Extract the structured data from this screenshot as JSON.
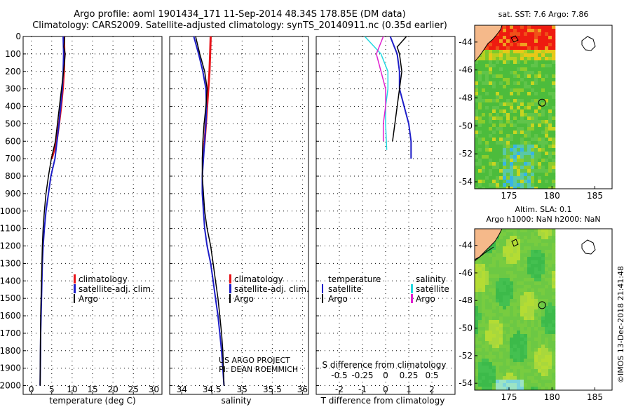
{
  "header": {
    "title_line1": "Argo profile: aoml 1901434_171 11-Sep-2014 48.34S 178.85E (DM data)",
    "title_line2": "Climatology: CARS2009. Satellite-adjusted climatology: synTS_20140911.nc (0.35d earlier)"
  },
  "colors": {
    "climatology": "#e8141a",
    "satellite": "#1e1ec8",
    "argo": "#000000",
    "salinity_diff": "#22d8e0",
    "argo_salinity_diff": "#e020d0"
  },
  "chart_data": [
    {
      "type": "line",
      "id": "temperature",
      "xlabel": "temperature (deg C)",
      "ylabel": "",
      "xlim": [
        -2,
        32
      ],
      "ylim": [
        2050,
        0
      ],
      "xticks": [
        "0",
        "5",
        "10",
        "15",
        "20",
        "25",
        "30"
      ],
      "xtick_values": [
        0,
        5,
        10,
        15,
        20,
        25,
        30
      ],
      "yticks": [
        "0",
        "100",
        "200",
        "300",
        "400",
        "500",
        "600",
        "700",
        "800",
        "900",
        "1000",
        "1100",
        "1200",
        "1300",
        "1400",
        "1500",
        "1600",
        "1700",
        "1800",
        "1900",
        "2000"
      ],
      "ytick_values": [
        0,
        100,
        200,
        300,
        400,
        500,
        600,
        700,
        800,
        900,
        1000,
        1100,
        1200,
        1300,
        1400,
        1500,
        1600,
        1700,
        1800,
        1900,
        2000
      ],
      "legend": [
        "climatology",
        "satellite-adj. clim.",
        "Argo"
      ],
      "series": [
        {
          "name": "climatology",
          "color": "#e8141a",
          "x": [
            8.0,
            8.1,
            8.0,
            7.7,
            7.3,
            6.8,
            6.2,
            5.6,
            5.0
          ],
          "y": [
            0,
            100,
            200,
            300,
            400,
            500,
            600,
            650,
            700
          ]
        },
        {
          "name": "satellite-adj. clim.",
          "color": "#1e1ec8",
          "x": [
            7.8,
            7.9,
            7.8,
            7.6,
            7.2,
            6.8,
            6.3,
            5.8,
            4.8,
            4.2,
            3.6,
            3.2,
            2.9,
            2.7,
            2.6,
            2.5,
            2.4,
            2.3,
            2.25,
            2.2,
            2.15
          ],
          "y": [
            0,
            100,
            200,
            300,
            400,
            500,
            600,
            700,
            800,
            900,
            1000,
            1100,
            1200,
            1300,
            1400,
            1500,
            1600,
            1700,
            1800,
            1900,
            2000
          ]
        },
        {
          "name": "Argo",
          "color": "#000000",
          "x": [
            8.2,
            8.0,
            8.3,
            7.9,
            7.4,
            6.9,
            6.4,
            5.9,
            4.9,
            4.2,
            3.6,
            3.2,
            2.9,
            2.7,
            2.6,
            2.5,
            2.4,
            2.3,
            2.25,
            2.2,
            2.15
          ],
          "y": [
            0,
            60,
            100,
            200,
            300,
            400,
            500,
            600,
            700,
            800,
            900,
            1000,
            1100,
            1200,
            1300,
            1400,
            1500,
            1600,
            1700,
            1800,
            2000
          ]
        }
      ]
    },
    {
      "type": "line",
      "id": "salinity",
      "xlabel": "salinity",
      "xlim": [
        33.8,
        36.1
      ],
      "ylim": [
        2050,
        0
      ],
      "xticks": [
        "34",
        "34.5",
        "35",
        "35.5",
        "36"
      ],
      "xtick_values": [
        34,
        34.5,
        35,
        35.5,
        36
      ],
      "legend": [
        "climatology",
        "satellite-adj. clim.",
        "Argo"
      ],
      "annotation": [
        "US ARGO PROJECT",
        "PI: DEAN ROEMMICH"
      ],
      "series": [
        {
          "name": "climatology",
          "color": "#e8141a",
          "x": [
            34.48,
            34.47,
            34.46,
            34.44,
            34.42,
            34.4,
            34.38,
            34.36,
            34.35
          ],
          "y": [
            0,
            100,
            200,
            300,
            400,
            500,
            600,
            650,
            700
          ]
        },
        {
          "name": "satellite-adj. clim.",
          "color": "#1e1ec8",
          "x": [
            34.2,
            34.28,
            34.35,
            34.4,
            34.41,
            34.4,
            34.38,
            34.36,
            34.34,
            34.34,
            34.36,
            34.38,
            34.42,
            34.48,
            34.52,
            34.56,
            34.6,
            34.63,
            34.66,
            34.68,
            34.7
          ],
          "y": [
            0,
            100,
            200,
            300,
            400,
            500,
            600,
            700,
            800,
            900,
            1000,
            1100,
            1200,
            1300,
            1400,
            1500,
            1600,
            1700,
            1800,
            1900,
            2000
          ]
        },
        {
          "name": "Argo",
          "color": "#000000",
          "x": [
            34.23,
            34.3,
            34.38,
            34.42,
            34.4,
            34.37,
            34.35,
            34.34,
            34.34,
            34.36,
            34.38,
            34.42,
            34.48,
            34.52,
            34.56,
            34.6,
            34.63,
            34.66,
            34.68,
            34.7
          ],
          "y": [
            0,
            100,
            200,
            300,
            400,
            500,
            600,
            700,
            800,
            900,
            1000,
            1100,
            1200,
            1300,
            1400,
            1500,
            1600,
            1700,
            1800,
            2000
          ]
        }
      ]
    },
    {
      "type": "line",
      "id": "differences",
      "xlabel": "T difference from climatology",
      "xlabel_top": "S difference from climatology",
      "xlim": [
        -3,
        3
      ],
      "ylim": [
        2050,
        0
      ],
      "xticks": [
        "-2",
        "-1",
        "0",
        "1",
        "2"
      ],
      "xtick_values": [
        -2,
        -1,
        0,
        1,
        2
      ],
      "xticks_top": [
        "-0.5",
        "-0.25",
        "0",
        "0.25",
        "0.5"
      ],
      "legend": [
        "temperature",
        "satellite",
        "Argo",
        "salinity",
        "satellite",
        "Argo"
      ],
      "series": [
        {
          "name": "temperature satellite",
          "color": "#1e1ec8",
          "x": [
            0.2,
            0.5,
            0.6,
            0.6,
            0.8,
            1.0,
            1.1,
            1.1
          ],
          "y": [
            0,
            100,
            200,
            300,
            400,
            500,
            600,
            700
          ]
        },
        {
          "name": "temperature Argo",
          "color": "#000000",
          "x": [
            0.9,
            0.5,
            0.6,
            0.7,
            0.6,
            0.5,
            0.4,
            0.3
          ],
          "y": [
            0,
            60,
            100,
            200,
            300,
            400,
            500,
            600
          ]
        },
        {
          "name": "salinity satellite",
          "color": "#22d8e0",
          "x": [
            -0.9,
            -0.2,
            0.1,
            0.1,
            0.0,
            0.0,
            0.05
          ],
          "y": [
            0,
            100,
            200,
            300,
            400,
            500,
            650
          ]
        },
        {
          "name": "salinity Argo",
          "color": "#e020d0",
          "x": [
            -0.1,
            -0.4,
            -0.2,
            0.0,
            0.0,
            -0.1,
            -0.1
          ],
          "y": [
            0,
            100,
            200,
            300,
            400,
            500,
            600
          ]
        }
      ]
    },
    {
      "type": "heatmap",
      "id": "sst-map",
      "title": "sat. SST: 7.6 Argo: 7.86",
      "xticks": [
        "175",
        "180",
        "185"
      ],
      "xtick_values": [
        175,
        180,
        185
      ],
      "yticks": [
        "-44",
        "-46",
        "-48",
        "-50",
        "-52",
        "-54"
      ],
      "ytick_values": [
        -44,
        -46,
        -48,
        -50,
        -52,
        -54
      ],
      "xlim": [
        171,
        187
      ],
      "ylim": [
        -54.5,
        -42.8
      ],
      "data_xlim": [
        171,
        180
      ],
      "argo_position": [
        178.85,
        -48.34
      ]
    },
    {
      "type": "heatmap",
      "id": "sla-map",
      "title_line1": "Altim. SLA: 0.1",
      "title_line2": "Argo h1000: NaN h2000: NaN",
      "xticks": [
        "175",
        "180",
        "185"
      ],
      "xtick_values": [
        175,
        180,
        185
      ],
      "yticks": [
        "-44",
        "-46",
        "-48",
        "-50",
        "-52",
        "-54"
      ],
      "ytick_values": [
        -44,
        -46,
        -48,
        -50,
        -52,
        -54
      ],
      "xlim": [
        171,
        187
      ],
      "ylim": [
        -54.5,
        -42.8
      ],
      "data_xlim": [
        171,
        180
      ],
      "argo_position": [
        178.85,
        -48.34
      ]
    }
  ],
  "footer": {
    "credit": "©IMOS 13-Dec-2018 21:41:48"
  }
}
